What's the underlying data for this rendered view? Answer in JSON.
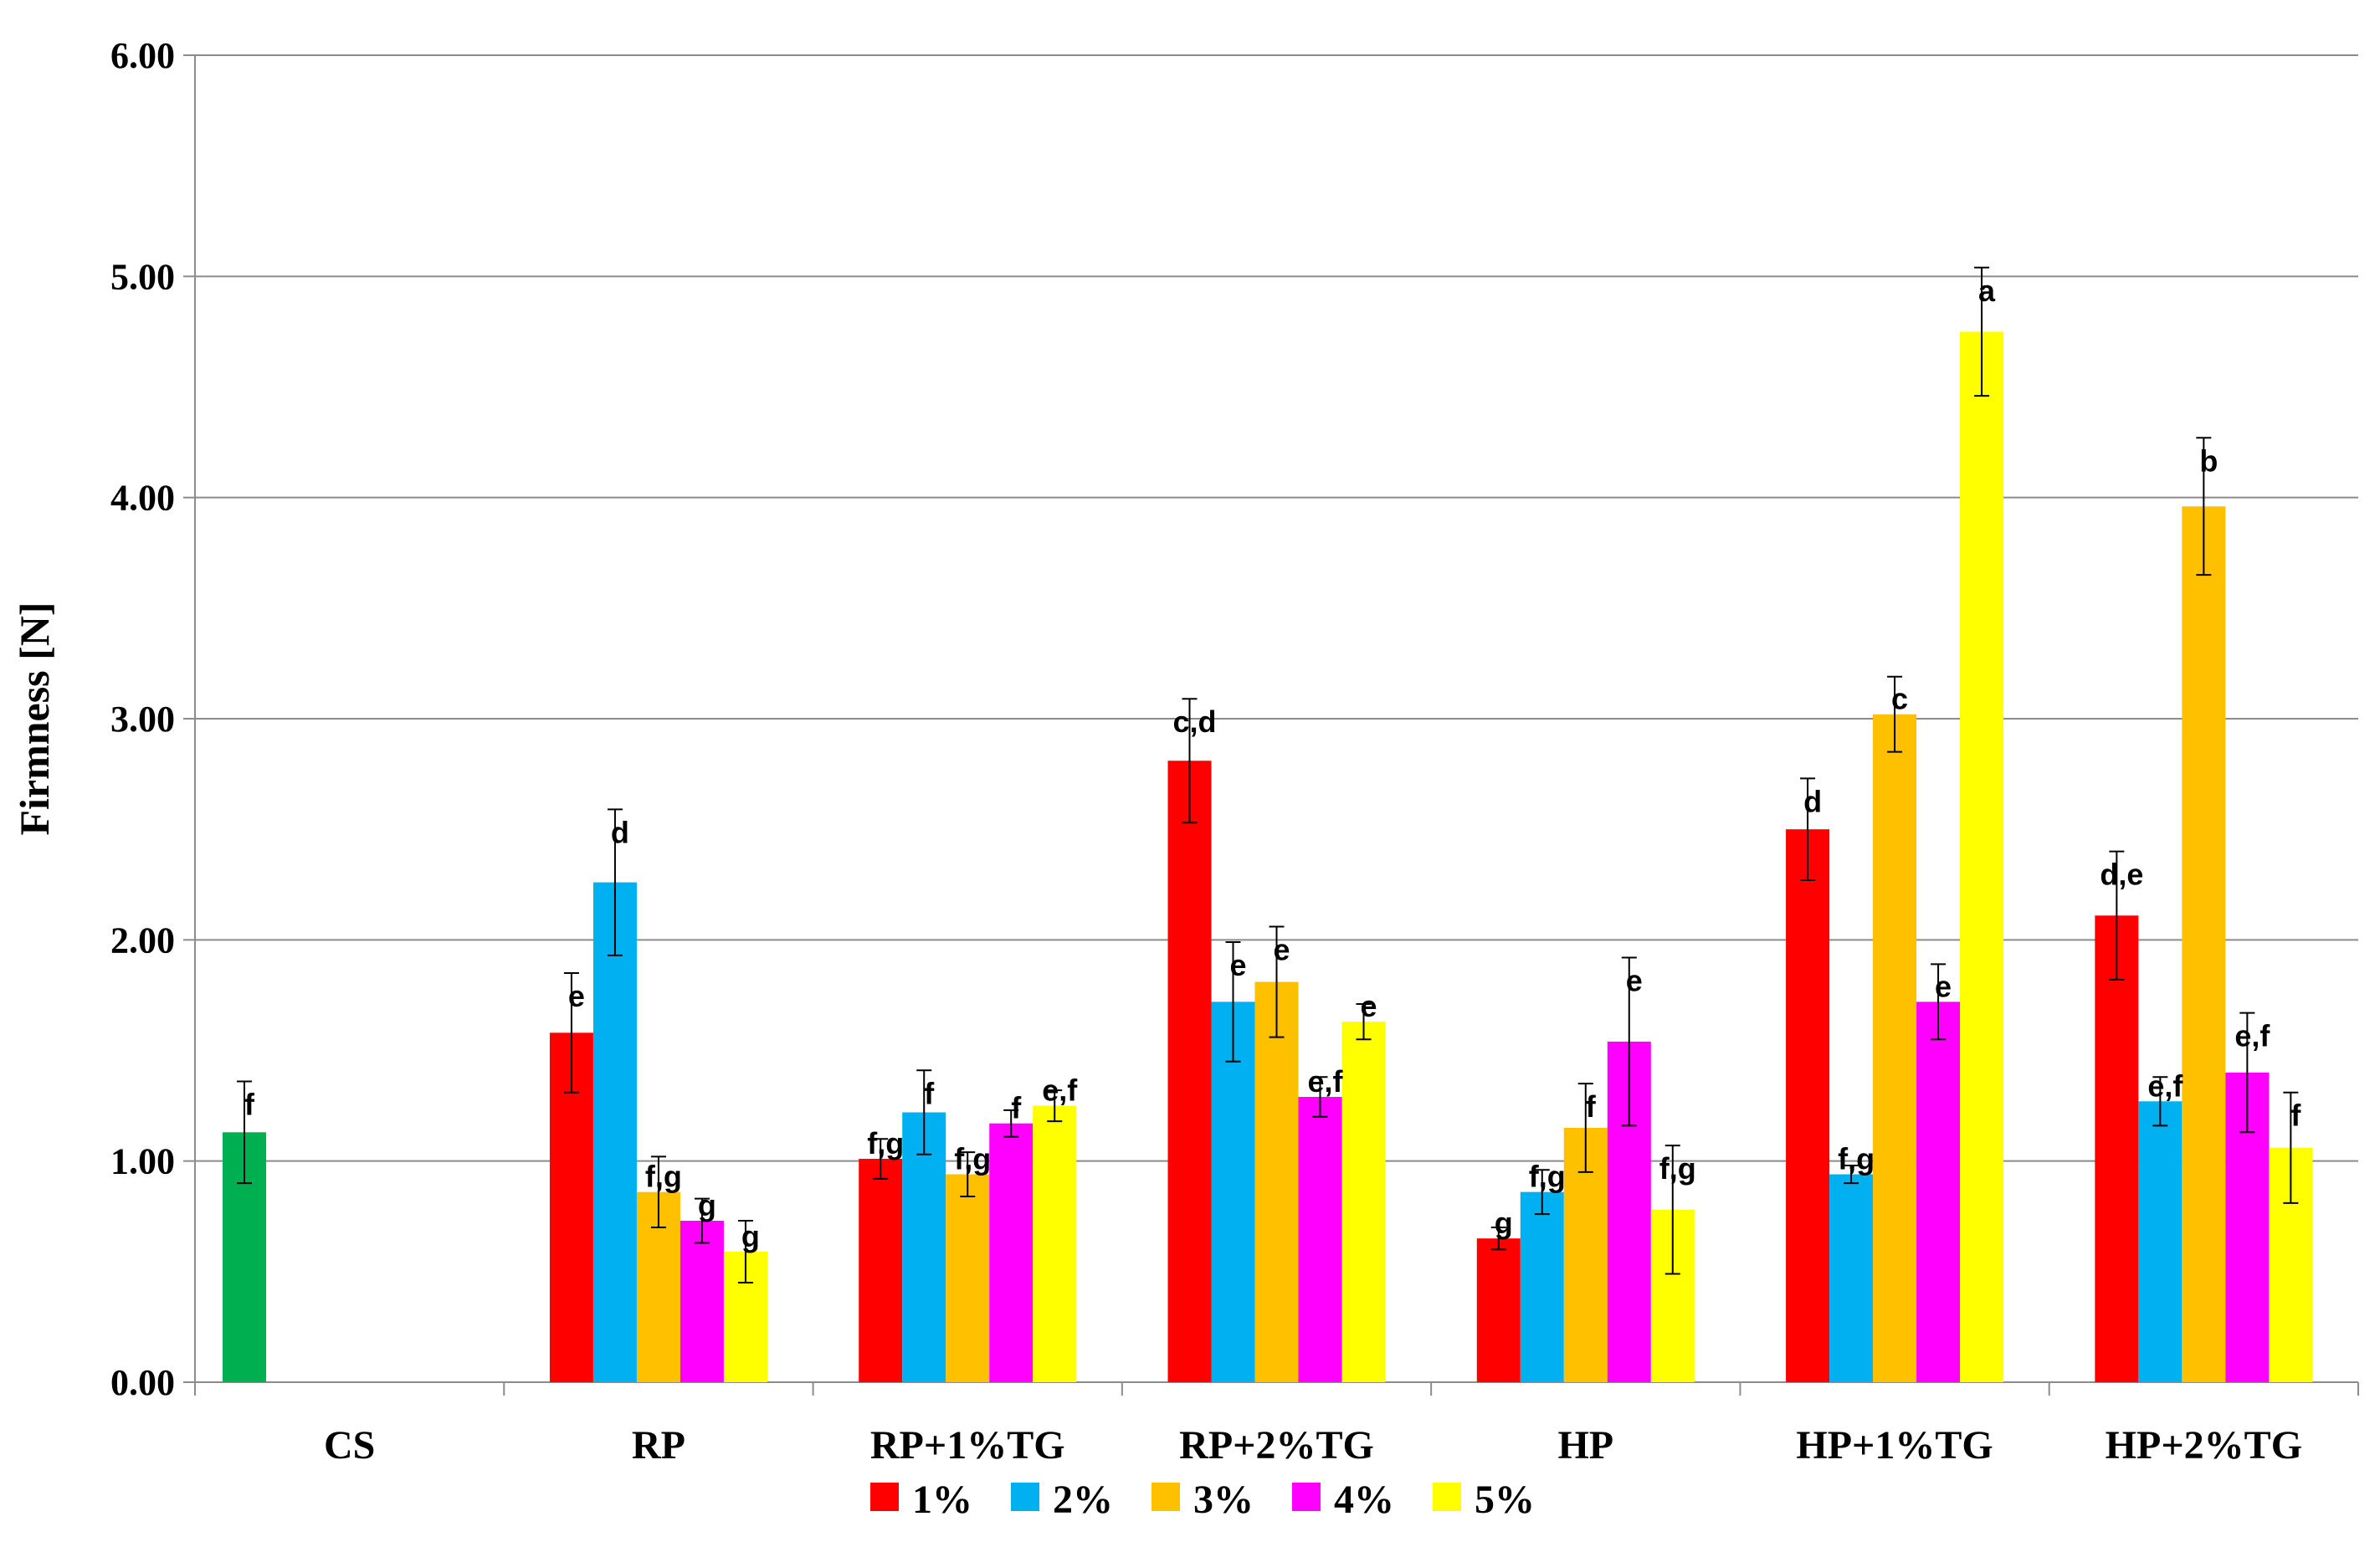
{
  "chart_data": {
    "type": "bar",
    "title": "",
    "xlabel": "",
    "ylabel": "Firmness [N]",
    "ylim": [
      0,
      6
    ],
    "yticks": [
      "0.00",
      "1.00",
      "2.00",
      "3.00",
      "4.00",
      "5.00",
      "6.00"
    ],
    "grid": true,
    "legend_position": "bottom",
    "categories": [
      "CS",
      "RP",
      "RP+1%TG",
      "RP+2%TG",
      "HP",
      "HP+1%TG",
      "HP+2%TG"
    ],
    "control": {
      "category": "CS",
      "value": 1.13,
      "error": 0.23,
      "label": "f",
      "color": "#00b050"
    },
    "series": [
      {
        "name": "1%",
        "color": "#ff0000",
        "values": [
          null,
          1.58,
          1.01,
          2.81,
          0.65,
          2.5,
          2.11
        ],
        "errors": [
          null,
          0.27,
          0.09,
          0.28,
          0.05,
          0.23,
          0.29
        ],
        "labels": [
          "",
          "e",
          "f,g",
          "c,d",
          "g",
          "d",
          "d,e"
        ]
      },
      {
        "name": "2%",
        "color": "#00b0f0",
        "values": [
          null,
          2.26,
          1.22,
          1.72,
          0.86,
          0.94,
          1.27
        ],
        "errors": [
          null,
          0.33,
          0.19,
          0.27,
          0.1,
          0.04,
          0.11
        ],
        "labels": [
          "",
          "d",
          "f",
          "e",
          "f,g",
          "f,g",
          "e,f"
        ]
      },
      {
        "name": "3%",
        "color": "#ffc000",
        "values": [
          null,
          0.86,
          0.94,
          1.81,
          1.15,
          3.02,
          3.96
        ],
        "errors": [
          null,
          0.16,
          0.1,
          0.25,
          0.2,
          0.17,
          0.31
        ],
        "labels": [
          "",
          "f,g",
          "f,g",
          "e",
          "f",
          "c",
          "b"
        ]
      },
      {
        "name": "4%",
        "color": "#ff00ff",
        "values": [
          null,
          0.73,
          1.17,
          1.29,
          1.54,
          1.72,
          1.4
        ],
        "errors": [
          null,
          0.1,
          0.06,
          0.09,
          0.38,
          0.17,
          0.27
        ],
        "labels": [
          "",
          "g",
          "f",
          "e,f",
          "e",
          "e",
          "e,f"
        ]
      },
      {
        "name": "5%",
        "color": "#ffff00",
        "values": [
          null,
          0.59,
          1.25,
          1.63,
          0.78,
          4.75,
          1.06
        ],
        "errors": [
          null,
          0.14,
          0.07,
          0.08,
          0.29,
          0.29,
          0.25
        ],
        "labels": [
          "",
          "g",
          "e,f",
          "e",
          "f,g",
          "a",
          "f"
        ]
      }
    ]
  }
}
